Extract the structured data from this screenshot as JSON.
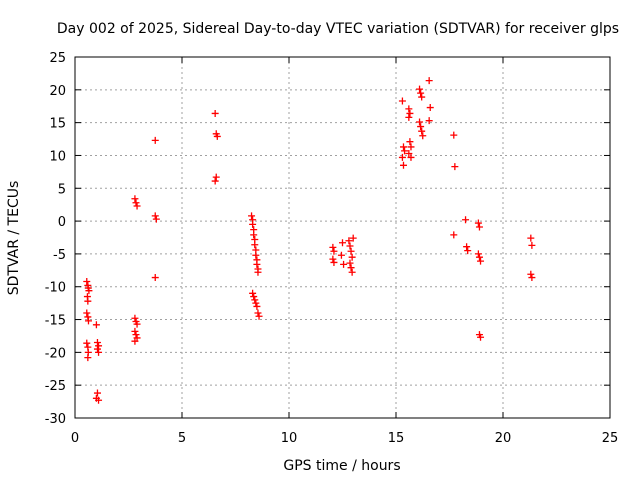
{
  "chart_data": {
    "type": "scatter",
    "title": "Day 002 of 2025, Sidereal Day-to-day VTEC variation (SDTVAR) for receiver glps",
    "xlabel": "GPS time / hours",
    "ylabel": "SDTVAR / TECUs",
    "xlim": [
      0,
      25
    ],
    "ylim": [
      -30,
      25
    ],
    "xticks": [
      0,
      5,
      10,
      15,
      20,
      25
    ],
    "yticks": [
      -30,
      -25,
      -20,
      -15,
      -10,
      -5,
      0,
      5,
      10,
      15,
      20,
      25
    ],
    "xtick_labels": [
      "0",
      "5",
      "10",
      "15",
      "20",
      "25"
    ],
    "ytick_labels": [
      "-30",
      "-25",
      "-20",
      "-15",
      "-10",
      "-5",
      "0",
      "5",
      "10",
      "15",
      "20",
      "25"
    ],
    "grid": true,
    "marker": "+",
    "color": "#ff0000",
    "series": [
      {
        "name": "SDTVAR",
        "points": [
          [
            0.55,
            -9.2
          ],
          [
            0.6,
            -9.8
          ],
          [
            0.62,
            -10.2
          ],
          [
            0.65,
            -10.6
          ],
          [
            0.58,
            -11.5
          ],
          [
            0.6,
            -12.2
          ],
          [
            0.55,
            -14.0
          ],
          [
            0.6,
            -14.6
          ],
          [
            0.63,
            -15.2
          ],
          [
            0.55,
            -18.6
          ],
          [
            0.6,
            -19.2
          ],
          [
            0.62,
            -20.0
          ],
          [
            0.6,
            -20.8
          ],
          [
            1.0,
            -15.8
          ],
          [
            1.05,
            -18.5
          ],
          [
            1.1,
            -19.0
          ],
          [
            1.05,
            -19.5
          ],
          [
            1.1,
            -20.0
          ],
          [
            1.05,
            -26.2
          ],
          [
            1.0,
            -27.0
          ],
          [
            1.1,
            -27.3
          ],
          [
            2.8,
            3.4
          ],
          [
            2.85,
            2.8
          ],
          [
            2.9,
            2.3
          ],
          [
            2.8,
            -14.8
          ],
          [
            2.85,
            -15.3
          ],
          [
            2.9,
            -15.7
          ],
          [
            2.8,
            -16.8
          ],
          [
            2.85,
            -17.3
          ],
          [
            2.9,
            -17.8
          ],
          [
            2.8,
            -18.3
          ],
          [
            3.75,
            12.3
          ],
          [
            3.75,
            0.8
          ],
          [
            3.8,
            0.3
          ],
          [
            3.75,
            -8.6
          ],
          [
            6.55,
            16.4
          ],
          [
            6.6,
            13.3
          ],
          [
            6.65,
            12.9
          ],
          [
            6.6,
            6.7
          ],
          [
            6.55,
            6.1
          ],
          [
            8.25,
            0.8
          ],
          [
            8.3,
            0.2
          ],
          [
            8.3,
            -0.5
          ],
          [
            8.35,
            -1.3
          ],
          [
            8.35,
            -2.1
          ],
          [
            8.4,
            -2.8
          ],
          [
            8.4,
            -3.6
          ],
          [
            8.45,
            -4.4
          ],
          [
            8.45,
            -5.2
          ],
          [
            8.5,
            -5.9
          ],
          [
            8.5,
            -6.6
          ],
          [
            8.55,
            -7.3
          ],
          [
            8.55,
            -7.8
          ],
          [
            8.3,
            -11.0
          ],
          [
            8.35,
            -11.5
          ],
          [
            8.4,
            -12.0
          ],
          [
            8.45,
            -12.5
          ],
          [
            8.5,
            -13.0
          ],
          [
            8.55,
            -14.0
          ],
          [
            8.6,
            -14.5
          ],
          [
            12.05,
            -4.0
          ],
          [
            12.1,
            -4.6
          ],
          [
            12.05,
            -5.8
          ],
          [
            12.1,
            -6.3
          ],
          [
            12.5,
            -3.3
          ],
          [
            12.45,
            -5.2
          ],
          [
            12.55,
            -6.6
          ],
          [
            12.8,
            -3.0
          ],
          [
            12.85,
            -3.8
          ],
          [
            12.9,
            -4.6
          ],
          [
            12.95,
            -5.5
          ],
          [
            12.85,
            -6.4
          ],
          [
            12.9,
            -7.1
          ],
          [
            12.95,
            -7.8
          ],
          [
            13.0,
            -2.6
          ],
          [
            15.3,
            18.3
          ],
          [
            15.35,
            11.3
          ],
          [
            15.4,
            10.7
          ],
          [
            15.3,
            9.7
          ],
          [
            15.35,
            8.5
          ],
          [
            15.6,
            17.1
          ],
          [
            15.65,
            16.4
          ],
          [
            15.6,
            15.8
          ],
          [
            15.65,
            12.1
          ],
          [
            15.7,
            11.3
          ],
          [
            15.6,
            10.3
          ],
          [
            15.7,
            9.7
          ],
          [
            16.1,
            20.1
          ],
          [
            16.15,
            19.5
          ],
          [
            16.2,
            18.9
          ],
          [
            16.1,
            15.1
          ],
          [
            16.15,
            14.4
          ],
          [
            16.2,
            13.7
          ],
          [
            16.25,
            13.0
          ],
          [
            16.55,
            21.4
          ],
          [
            16.6,
            17.3
          ],
          [
            16.55,
            15.3
          ],
          [
            17.7,
            13.1
          ],
          [
            17.75,
            8.3
          ],
          [
            17.7,
            -2.1
          ],
          [
            18.25,
            0.2
          ],
          [
            18.3,
            -3.9
          ],
          [
            18.35,
            -4.5
          ],
          [
            18.85,
            -0.3
          ],
          [
            18.9,
            -0.9
          ],
          [
            18.85,
            -5.0
          ],
          [
            18.9,
            -5.5
          ],
          [
            18.95,
            -6.1
          ],
          [
            18.9,
            -17.3
          ],
          [
            18.95,
            -17.7
          ],
          [
            21.3,
            -2.6
          ],
          [
            21.35,
            -3.7
          ],
          [
            21.3,
            -8.1
          ],
          [
            21.35,
            -8.6
          ]
        ]
      }
    ]
  }
}
